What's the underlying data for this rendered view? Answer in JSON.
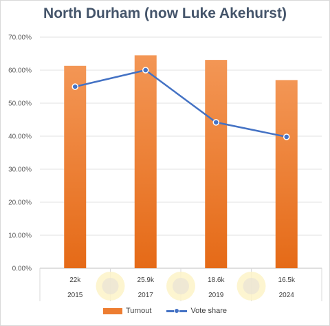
{
  "chart_data": {
    "type": "bar",
    "title": "North Durham (now Luke Akehurst)",
    "categories": [
      "2015",
      "2017",
      "2019",
      "2024"
    ],
    "category_sublabels": [
      "22k",
      "25.9k",
      "18.6k",
      "16.5k"
    ],
    "ylim": [
      0,
      70
    ],
    "yticks": [
      "0.00%",
      "10.00%",
      "20.00%",
      "30.00%",
      "40.00%",
      "50.00%",
      "60.00%",
      "70.00%"
    ],
    "grid": true,
    "legend_position": "bottom",
    "series": [
      {
        "name": "Turnout",
        "type": "bar",
        "color": "#ed7d31",
        "values": [
          61.3,
          64.5,
          63.1,
          57.0
        ]
      },
      {
        "name": "Vote share",
        "type": "line",
        "color": "#4472c4",
        "values": [
          55.0,
          60.0,
          44.2,
          39.8
        ]
      }
    ]
  }
}
